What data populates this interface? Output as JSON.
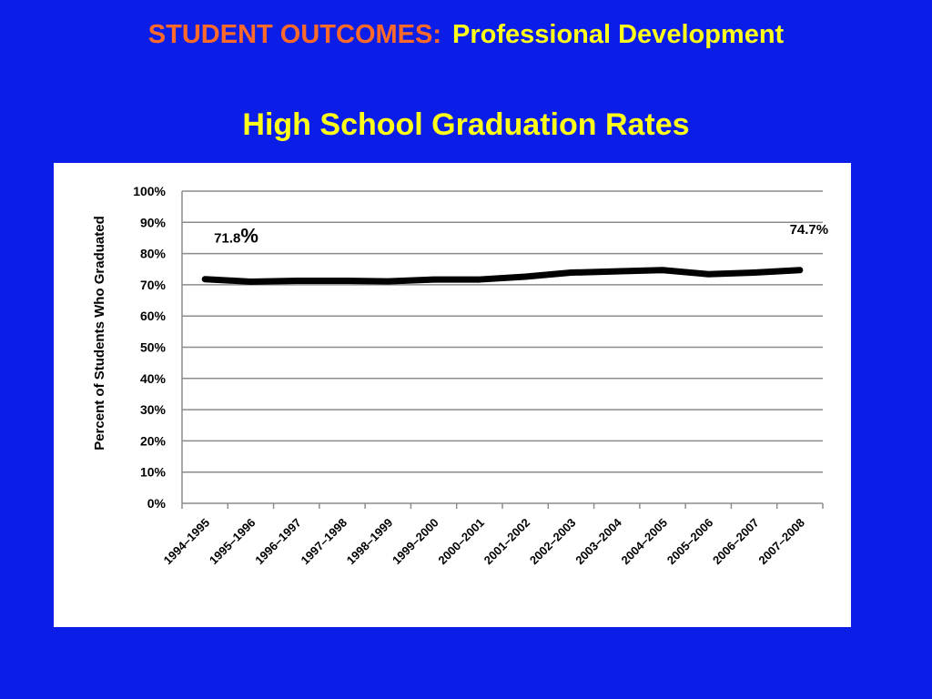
{
  "header": {
    "section": "STUDENT OUTCOMES:",
    "topic": "Professional Development"
  },
  "colors": {
    "background": "#0a1ee8",
    "section_text": "#ff6a2b",
    "title_text": "#ffff1a",
    "line": "#000000",
    "grid": "#8c8c8c"
  },
  "chart_data": {
    "type": "line",
    "title": "High School Graduation Rates",
    "xlabel": "",
    "ylabel": "Percent of Students Who Graduated",
    "ylim": [
      0,
      100
    ],
    "y_ticks": [
      0,
      10,
      20,
      30,
      40,
      50,
      60,
      70,
      80,
      90,
      100
    ],
    "y_tick_labels": [
      "0%",
      "10%",
      "20%",
      "30%",
      "40%",
      "50%",
      "60%",
      "70%",
      "80%",
      "90%",
      "100%"
    ],
    "grid": true,
    "legend": "none",
    "categories": [
      "1994–1995",
      "1995–1996",
      "1996–1997",
      "1997–1998",
      "1998–1999",
      "1999–2000",
      "2000–2001",
      "2001–2002",
      "2002–2003",
      "2003–2004",
      "2004–2005",
      "2005–2006",
      "2006–2007",
      "2007–2008"
    ],
    "series": [
      {
        "values": [
          71.8,
          71.0,
          71.3,
          71.3,
          71.1,
          71.7,
          71.7,
          72.6,
          73.9,
          74.3,
          74.7,
          73.4,
          73.9,
          74.7
        ]
      }
    ],
    "annotations": [
      {
        "index": 0,
        "label_value": "71.8",
        "label_unit": "%"
      },
      {
        "index": 13,
        "label_value": "74.7",
        "label_unit": "%"
      }
    ]
  }
}
